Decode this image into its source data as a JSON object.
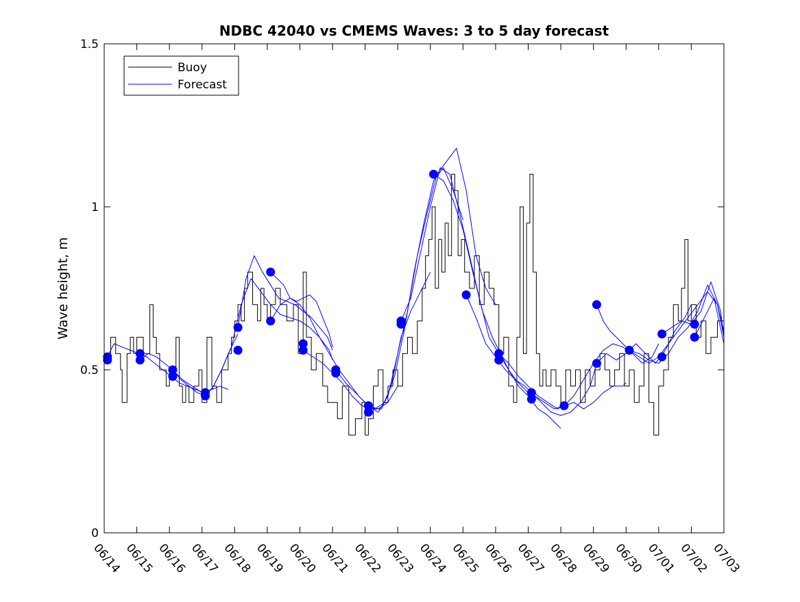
{
  "colors": {
    "buoy": "#000000",
    "forecast": "#0000ff",
    "axis": "#000000",
    "background": "#ffffff"
  },
  "chart_data": {
    "type": "line",
    "title": "NDBC 42040 vs CMEMS Waves: 3 to 5 day forecast",
    "xlabel": "",
    "ylabel": "Wave height, m",
    "xlim": [
      "06/14",
      "07/03"
    ],
    "ylim": [
      0,
      1.5
    ],
    "y_ticks": [
      0,
      0.5,
      1,
      1.5
    ],
    "y_tick_labels": [
      "0",
      "0.5",
      "1",
      "1.5"
    ],
    "x_tick_labels": [
      "06/14",
      "06/15",
      "06/16",
      "06/17",
      "06/18",
      "06/19",
      "06/20",
      "06/21",
      "06/22",
      "06/23",
      "06/24",
      "06/25",
      "06/26",
      "06/27",
      "06/28",
      "06/29",
      "06/30",
      "07/01",
      "07/02",
      "07/03"
    ],
    "grid": false,
    "legend": {
      "position": "top-left",
      "entries": [
        "Buoy",
        "Forecast"
      ]
    },
    "series": [
      {
        "name": "Buoy",
        "color": "#000000",
        "x": [
          14.0,
          14.2,
          14.35,
          14.5,
          14.55,
          14.7,
          14.8,
          14.9,
          15.0,
          15.2,
          15.4,
          15.5,
          15.6,
          15.7,
          15.8,
          15.9,
          16.0,
          16.2,
          16.3,
          16.4,
          16.5,
          16.6,
          16.75,
          16.9,
          17.0,
          17.15,
          17.3,
          17.45,
          17.6,
          17.8,
          17.9,
          18.0,
          18.1,
          18.2,
          18.3,
          18.4,
          18.55,
          18.7,
          18.8,
          18.9,
          19.0,
          19.1,
          19.25,
          19.4,
          19.6,
          19.8,
          19.95,
          20.1,
          20.2,
          20.35,
          20.5,
          20.7,
          20.85,
          21.0,
          21.15,
          21.3,
          21.5,
          21.7,
          21.9,
          22.0,
          22.1,
          22.25,
          22.4,
          22.55,
          22.7,
          22.85,
          23.0,
          23.15,
          23.3,
          23.45,
          23.6,
          23.75,
          23.85,
          23.95,
          24.05,
          24.15,
          24.25,
          24.35,
          24.45,
          24.55,
          24.65,
          24.75,
          24.85,
          24.95,
          25.05,
          25.2,
          25.35,
          25.5,
          25.65,
          25.8,
          25.95,
          26.1,
          26.25,
          26.4,
          26.55,
          26.65,
          26.75,
          26.85,
          26.95,
          27.05,
          27.15,
          27.25,
          27.35,
          27.45,
          27.55,
          27.7,
          27.85,
          28.0,
          28.15,
          28.3,
          28.45,
          28.6,
          28.75,
          28.9,
          29.05,
          29.2,
          29.35,
          29.5,
          29.65,
          29.8,
          29.95,
          30.1,
          30.25,
          30.4,
          30.55,
          30.7,
          30.85,
          31.0,
          31.15,
          31.3,
          31.45,
          31.6,
          31.7,
          31.8,
          31.9,
          32.0,
          32.15,
          32.3,
          32.45,
          32.6,
          32.8,
          33.0
        ],
        "y": [
          0.55,
          0.6,
          0.55,
          0.5,
          0.4,
          0.55,
          0.6,
          0.55,
          0.6,
          0.55,
          0.7,
          0.6,
          0.55,
          0.5,
          0.5,
          0.45,
          0.5,
          0.6,
          0.45,
          0.4,
          0.45,
          0.4,
          0.45,
          0.5,
          0.4,
          0.6,
          0.45,
          0.4,
          0.5,
          0.55,
          0.6,
          0.65,
          0.7,
          0.65,
          0.75,
          0.8,
          0.7,
          0.65,
          0.75,
          0.7,
          0.65,
          0.7,
          0.75,
          0.7,
          0.65,
          0.7,
          0.55,
          0.8,
          0.6,
          0.5,
          0.55,
          0.45,
          0.4,
          0.4,
          0.35,
          0.45,
          0.3,
          0.35,
          0.4,
          0.3,
          0.35,
          0.45,
          0.5,
          0.4,
          0.45,
          0.5,
          0.45,
          0.55,
          0.6,
          0.55,
          0.65,
          0.75,
          0.85,
          0.9,
          1.0,
          0.75,
          0.9,
          0.8,
          0.95,
          0.85,
          1.1,
          1.05,
          0.85,
          0.9,
          0.8,
          0.75,
          0.85,
          0.7,
          0.8,
          0.75,
          0.7,
          0.55,
          0.6,
          0.45,
          0.4,
          0.6,
          1.0,
          0.55,
          0.95,
          1.1,
          0.8,
          0.55,
          0.45,
          0.5,
          0.45,
          0.5,
          0.45,
          0.4,
          0.5,
          0.45,
          0.5,
          0.4,
          0.5,
          0.45,
          0.5,
          0.55,
          0.5,
          0.45,
          0.5,
          0.55,
          0.45,
          0.5,
          0.4,
          0.45,
          0.55,
          0.4,
          0.3,
          0.45,
          0.5,
          0.6,
          0.7,
          0.65,
          0.75,
          0.9,
          0.65,
          0.7,
          0.6,
          0.65,
          0.55,
          0.6,
          0.65,
          0.65
        ]
      },
      {
        "name": "Forecast",
        "color": "#0000ff",
        "x": [
          14.1,
          14.3,
          14.55,
          14.8,
          15.05,
          15.3,
          15.55,
          15.8,
          16.05,
          16.3,
          16.55,
          16.8,
          17.05,
          17.3,
          17.55,
          17.8
        ],
        "y": [
          0.54,
          0.58,
          0.57,
          0.56,
          0.55,
          0.54,
          0.52,
          0.5,
          0.48,
          0.46,
          0.45,
          0.44,
          0.43,
          0.44,
          0.45,
          0.44
        ]
      },
      {
        "name": "",
        "color": "#0000ff",
        "x": [
          15.1,
          15.35,
          15.6,
          15.85,
          16.1,
          16.35,
          16.6,
          16.85,
          17.1,
          17.35,
          17.6,
          17.85,
          18.1
        ],
        "y": [
          0.53,
          0.55,
          0.54,
          0.52,
          0.5,
          0.47,
          0.45,
          0.43,
          0.42,
          0.45,
          0.5,
          0.56,
          0.61
        ]
      },
      {
        "name": "",
        "color": "#0000ff",
        "x": [
          16.1,
          16.4,
          16.7,
          17.0,
          17.3,
          17.6,
          17.9,
          18.2,
          18.5,
          18.8,
          19.1,
          19.4,
          19.7,
          20.0,
          20.3,
          20.6,
          20.9,
          21.0
        ],
        "y": [
          0.5,
          0.47,
          0.45,
          0.43,
          0.44,
          0.5,
          0.57,
          0.7,
          0.78,
          0.74,
          0.7,
          0.67,
          0.66,
          0.65,
          0.63,
          0.6,
          0.56,
          0.53
        ]
      },
      {
        "name": "",
        "color": "#0000ff",
        "x": [
          18.1,
          18.35,
          18.6,
          18.85,
          19.1,
          19.35,
          19.6,
          19.85,
          20.1,
          20.35,
          20.6,
          20.85,
          21.0
        ],
        "y": [
          0.63,
          0.78,
          0.85,
          0.8,
          0.76,
          0.72,
          0.71,
          0.7,
          0.68,
          0.66,
          0.63,
          0.6,
          0.56
        ]
      },
      {
        "name": "",
        "color": "#0000ff",
        "x": [
          19.1,
          19.4,
          19.7,
          20.0,
          20.3,
          20.6,
          20.9,
          21.2,
          21.5,
          21.8,
          22.1,
          22.4,
          22.7,
          23.0
        ],
        "y": [
          0.65,
          0.7,
          0.72,
          0.7,
          0.66,
          0.6,
          0.55,
          0.5,
          0.46,
          0.42,
          0.39,
          0.38,
          0.4,
          0.45
        ]
      },
      {
        "name": "",
        "color": "#0000ff",
        "x": [
          19.1,
          19.3,
          19.5,
          19.7,
          19.9,
          20.1,
          20.3,
          20.5,
          20.7,
          20.9,
          21.0
        ],
        "y": [
          0.8,
          0.78,
          0.76,
          0.72,
          0.71,
          0.72,
          0.73,
          0.71,
          0.66,
          0.61,
          0.57
        ]
      },
      {
        "name": "",
        "color": "#0000ff",
        "x": [
          20.1,
          20.4,
          20.7,
          21.0,
          21.3,
          21.6,
          21.9,
          22.2,
          22.5,
          22.8,
          23.1,
          23.4,
          23.7,
          24.0
        ],
        "y": [
          0.56,
          0.54,
          0.52,
          0.49,
          0.46,
          0.42,
          0.39,
          0.38,
          0.38,
          0.45,
          0.6,
          0.68,
          0.74,
          0.8
        ]
      },
      {
        "name": "",
        "color": "#0000ff",
        "x": [
          21.1,
          21.4,
          21.7,
          22.0,
          22.3,
          22.6,
          22.9,
          23.2,
          23.5,
          23.8,
          24.1,
          24.4,
          24.7,
          25.0
        ],
        "y": [
          0.5,
          0.46,
          0.43,
          0.4,
          0.38,
          0.4,
          0.48,
          0.62,
          0.8,
          0.95,
          1.08,
          1.12,
          1.05,
          0.96
        ]
      },
      {
        "name": "",
        "color": "#0000ff",
        "x": [
          22.1,
          22.4,
          22.7,
          23.0,
          23.3,
          23.6,
          23.9,
          24.2,
          24.5,
          24.8,
          25.1,
          25.4,
          25.7,
          26.0
        ],
        "y": [
          0.39,
          0.37,
          0.42,
          0.55,
          0.68,
          0.85,
          0.98,
          1.1,
          1.14,
          1.18,
          1.05,
          0.85,
          0.75,
          0.7
        ]
      },
      {
        "name": "",
        "color": "#0000ff",
        "x": [
          23.1,
          23.4,
          23.7,
          24.0,
          24.3,
          24.6,
          24.9,
          25.2,
          25.5,
          25.8,
          26.1,
          26.4,
          26.7,
          27.0
        ],
        "y": [
          0.65,
          0.72,
          0.86,
          1.0,
          1.12,
          1.1,
          0.98,
          0.85,
          0.72,
          0.6,
          0.55,
          0.5,
          0.46,
          0.43
        ]
      },
      {
        "name": "",
        "color": "#0000ff",
        "x": [
          24.1,
          24.4,
          24.7,
          25.0,
          25.3,
          25.6,
          25.9,
          26.1,
          26.4,
          26.7,
          27.0,
          27.3,
          27.6,
          27.9,
          28.0
        ],
        "y": [
          1.1,
          1.08,
          1.02,
          0.93,
          0.8,
          0.68,
          0.6,
          0.56,
          0.5,
          0.45,
          0.42,
          0.38,
          0.36,
          0.33,
          0.32
        ]
      },
      {
        "name": "",
        "color": "#0000ff",
        "x": [
          25.1,
          25.4,
          25.7,
          26.0,
          26.3,
          26.6,
          26.9,
          27.2,
          27.5,
          27.8,
          28.1,
          28.4,
          28.7,
          29.0,
          29.3,
          29.6,
          29.9,
          30.0
        ],
        "y": [
          0.73,
          0.66,
          0.58,
          0.54,
          0.5,
          0.47,
          0.45,
          0.42,
          0.4,
          0.38,
          0.39,
          0.4,
          0.38,
          0.4,
          0.43,
          0.45,
          0.45,
          0.46
        ]
      },
      {
        "name": "",
        "color": "#0000ff",
        "x": [
          26.1,
          26.4,
          26.7,
          27.0,
          27.3,
          27.6,
          27.9,
          28.1,
          28.4,
          28.7,
          29.0,
          29.3,
          29.6,
          29.9,
          30.2,
          30.5,
          30.8,
          31.0
        ],
        "y": [
          0.55,
          0.52,
          0.48,
          0.45,
          0.42,
          0.4,
          0.38,
          0.39,
          0.42,
          0.47,
          0.52,
          0.56,
          0.58,
          0.57,
          0.55,
          0.52,
          0.54,
          0.58
        ]
      },
      {
        "name": "",
        "color": "#0000ff",
        "x": [
          27.1,
          27.4,
          27.7,
          28.0,
          28.3,
          28.6,
          28.9,
          29.1,
          29.4,
          29.7,
          30.0,
          30.3,
          30.6,
          30.9,
          31.2,
          31.5,
          31.8,
          32.0
        ],
        "y": [
          0.43,
          0.4,
          0.37,
          0.36,
          0.37,
          0.4,
          0.45,
          0.52,
          0.55,
          0.53,
          0.55,
          0.58,
          0.55,
          0.52,
          0.56,
          0.62,
          0.66,
          0.7
        ]
      },
      {
        "name": "",
        "color": "#0000ff",
        "x": [
          29.1,
          29.3,
          29.5,
          29.7,
          29.9,
          30.1,
          30.4,
          30.7,
          31.0,
          31.3,
          31.6,
          31.9,
          32.2,
          32.5,
          32.8,
          33.0
        ],
        "y": [
          0.7,
          0.65,
          0.62,
          0.6,
          0.58,
          0.56,
          0.54,
          0.52,
          0.54,
          0.58,
          0.62,
          0.66,
          0.7,
          0.74,
          0.7,
          0.6
        ]
      },
      {
        "name": "",
        "color": "#0000ff",
        "x": [
          30.1,
          30.4,
          30.7,
          31.0,
          31.3,
          31.6,
          31.9,
          32.2,
          32.5,
          32.8,
          33.0
        ],
        "y": [
          0.56,
          0.55,
          0.53,
          0.52,
          0.55,
          0.6,
          0.63,
          0.68,
          0.76,
          0.7,
          0.62
        ]
      },
      {
        "name": "",
        "color": "#0000ff",
        "x": [
          31.1,
          31.4,
          31.7,
          32.0,
          32.3,
          32.6,
          32.9,
          33.0
        ],
        "y": [
          0.61,
          0.63,
          0.65,
          0.64,
          0.68,
          0.77,
          0.68,
          0.6
        ]
      },
      {
        "name": "",
        "color": "#0000ff",
        "x": [
          32.1,
          32.4,
          32.7,
          33.0
        ],
        "y": [
          0.6,
          0.66,
          0.72,
          0.58
        ]
      }
    ],
    "forecast_points": {
      "color": "#0000ff",
      "x": [
        14.1,
        14.1,
        15.1,
        15.1,
        16.1,
        16.1,
        17.1,
        17.1,
        18.1,
        18.1,
        19.1,
        19.1,
        20.1,
        20.1,
        21.1,
        21.1,
        22.1,
        22.1,
        23.1,
        23.1,
        24.1,
        25.1,
        26.1,
        26.1,
        27.1,
        27.1,
        28.1,
        29.1,
        29.1,
        30.1,
        31.1,
        31.1,
        32.1,
        32.1
      ],
      "y": [
        0.54,
        0.53,
        0.55,
        0.53,
        0.5,
        0.48,
        0.43,
        0.42,
        0.63,
        0.56,
        0.8,
        0.65,
        0.58,
        0.56,
        0.5,
        0.49,
        0.39,
        0.37,
        0.65,
        0.64,
        1.1,
        0.73,
        0.55,
        0.53,
        0.43,
        0.41,
        0.39,
        0.7,
        0.52,
        0.56,
        0.61,
        0.54,
        0.64,
        0.6
      ]
    }
  }
}
